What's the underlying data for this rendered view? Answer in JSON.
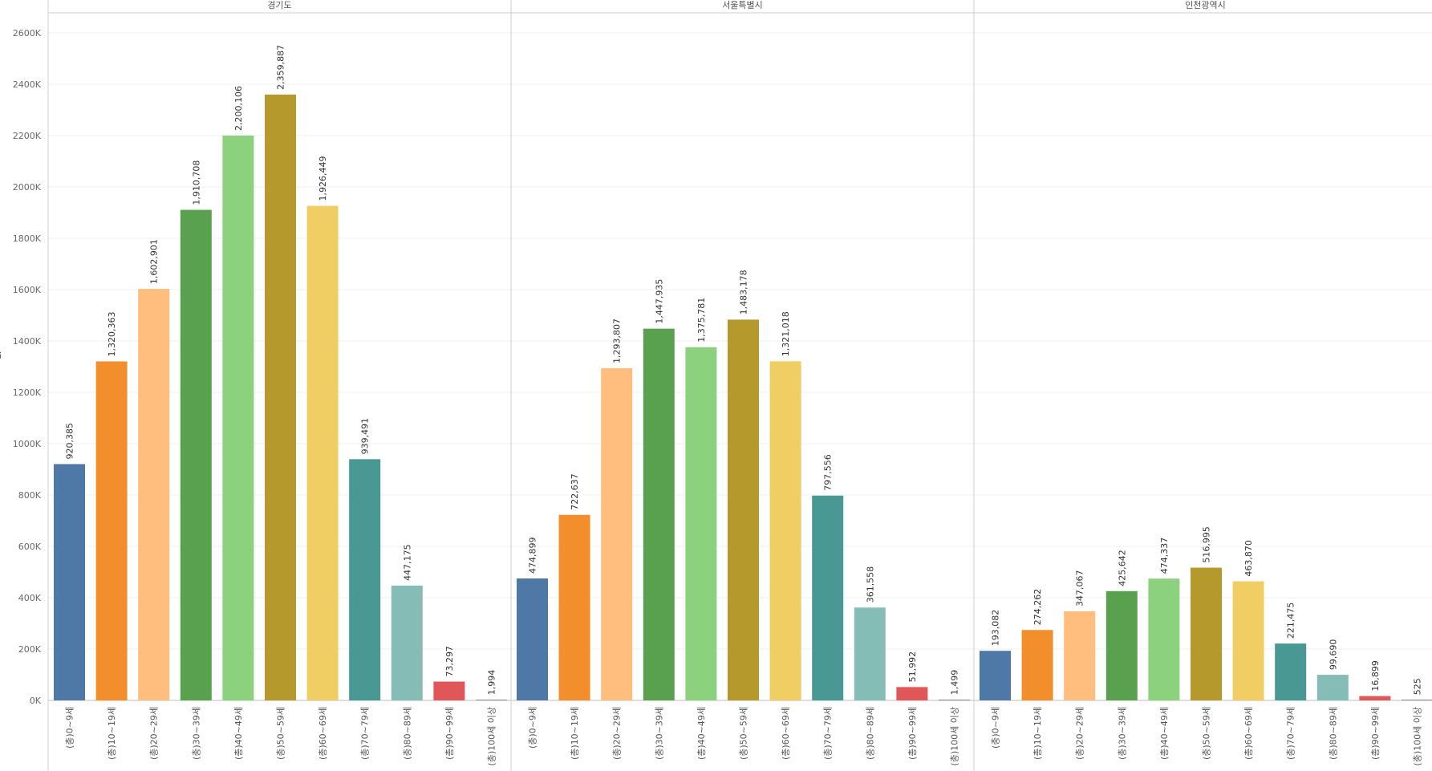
{
  "chart_data": {
    "type": "bar",
    "title": "",
    "xlabel": "",
    "ylabel": "값",
    "ylim": [
      0,
      2700000
    ],
    "yticks": [
      0,
      200000,
      400000,
      600000,
      800000,
      1000000,
      1200000,
      1400000,
      1600000,
      1800000,
      2000000,
      2200000,
      2400000,
      2600000
    ],
    "ytick_labels": [
      "0K",
      "200K",
      "400K",
      "600K",
      "800K",
      "1000K",
      "1200K",
      "1400K",
      "1600K",
      "1800K",
      "2000K",
      "2200K",
      "2400K",
      "2600K"
    ],
    "grid": true,
    "categories": [
      "(총)0~9세",
      "(총)10~19세",
      "(총)20~29세",
      "(총)30~39세",
      "(총)40~49세",
      "(총)50~59세",
      "(총)60~69세",
      "(총)70~79세",
      "(총)80~89세",
      "(총)90~99세",
      "(총)100세 이상"
    ],
    "colors": [
      "#4e79a7",
      "#f28e2b",
      "#ffbe7d",
      "#59a14f",
      "#8cd17d",
      "#b6992d",
      "#f1ce63",
      "#499894",
      "#86bcb6",
      "#e15759",
      "#79706e"
    ],
    "panels": [
      {
        "name": "경기도",
        "values": [
          920385,
          1320363,
          1602901,
          1910708,
          2200106,
          2359887,
          1926449,
          939491,
          447175,
          73297,
          1994
        ],
        "labels": [
          "920,385",
          "1,320,363",
          "1,602,901",
          "1,910,708",
          "2,200,106",
          "2,359,887",
          "1,926,449",
          "939,491",
          "447,175",
          "73,297",
          "1,994"
        ]
      },
      {
        "name": "서울특별시",
        "values": [
          474899,
          722637,
          1293807,
          1447935,
          1375781,
          1483178,
          1321018,
          797556,
          361558,
          51992,
          1499
        ],
        "labels": [
          "474,899",
          "722,637",
          "1,293,807",
          "1,447,935",
          "1,375,781",
          "1,483,178",
          "1,321,018",
          "797,556",
          "361,558",
          "51,992",
          "1,499"
        ]
      },
      {
        "name": "인천광역시",
        "values": [
          193082,
          274262,
          347067,
          425642,
          474337,
          516995,
          463870,
          221475,
          99690,
          16899,
          525
        ],
        "labels": [
          "193,082",
          "274,262",
          "347,067",
          "425,642",
          "474,337",
          "516,995",
          "463,870",
          "221,475",
          "99,690",
          "16,899",
          "525"
        ]
      }
    ]
  }
}
